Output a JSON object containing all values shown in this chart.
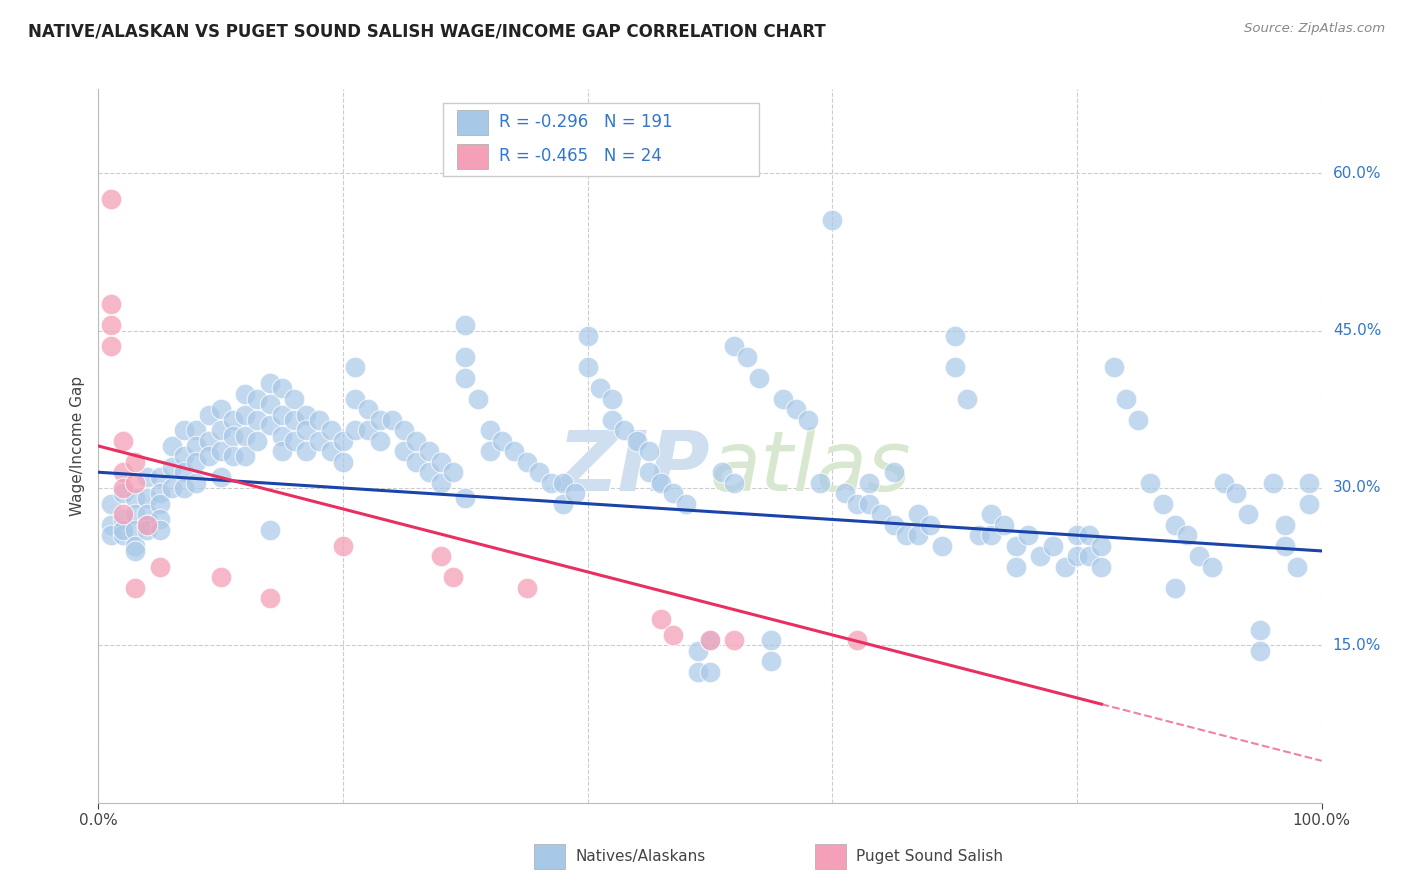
{
  "title": "NATIVE/ALASKAN VS PUGET SOUND SALISH WAGE/INCOME GAP CORRELATION CHART",
  "source": "Source: ZipAtlas.com",
  "ylabel": "Wage/Income Gap",
  "ytick_labels": [
    "60.0%",
    "45.0%",
    "30.0%",
    "15.0%"
  ],
  "ytick_positions": [
    0.6,
    0.45,
    0.3,
    0.15
  ],
  "legend_R1": "-0.296",
  "legend_N1": "191",
  "legend_R2": "-0.465",
  "legend_N2": "24",
  "blue_color": "#a8c8e8",
  "pink_color": "#f4a0b8",
  "blue_line_color": "#1a44aa",
  "pink_line_color": "#e83060",
  "watermark_color": "#d0dff0",
  "title_color": "#222222",
  "axis_label_color": "#444444",
  "tick_color_right": "#3377cc",
  "background_color": "#ffffff",
  "grid_color": "#cccccc",
  "blue_points": [
    [
      0.01,
      0.285
    ],
    [
      0.01,
      0.265
    ],
    [
      0.01,
      0.255
    ],
    [
      0.02,
      0.295
    ],
    [
      0.02,
      0.27
    ],
    [
      0.02,
      0.255
    ],
    [
      0.02,
      0.26
    ],
    [
      0.03,
      0.29
    ],
    [
      0.03,
      0.275
    ],
    [
      0.03,
      0.26
    ],
    [
      0.03,
      0.245
    ],
    [
      0.03,
      0.24
    ],
    [
      0.04,
      0.31
    ],
    [
      0.04,
      0.29
    ],
    [
      0.04,
      0.275
    ],
    [
      0.04,
      0.265
    ],
    [
      0.04,
      0.26
    ],
    [
      0.05,
      0.31
    ],
    [
      0.05,
      0.295
    ],
    [
      0.05,
      0.285
    ],
    [
      0.05,
      0.27
    ],
    [
      0.05,
      0.26
    ],
    [
      0.06,
      0.34
    ],
    [
      0.06,
      0.32
    ],
    [
      0.06,
      0.3
    ],
    [
      0.07,
      0.355
    ],
    [
      0.07,
      0.33
    ],
    [
      0.07,
      0.315
    ],
    [
      0.07,
      0.3
    ],
    [
      0.08,
      0.355
    ],
    [
      0.08,
      0.34
    ],
    [
      0.08,
      0.325
    ],
    [
      0.08,
      0.305
    ],
    [
      0.09,
      0.37
    ],
    [
      0.09,
      0.345
    ],
    [
      0.09,
      0.33
    ],
    [
      0.1,
      0.375
    ],
    [
      0.1,
      0.355
    ],
    [
      0.1,
      0.335
    ],
    [
      0.1,
      0.31
    ],
    [
      0.11,
      0.365
    ],
    [
      0.11,
      0.35
    ],
    [
      0.11,
      0.33
    ],
    [
      0.12,
      0.39
    ],
    [
      0.12,
      0.37
    ],
    [
      0.12,
      0.35
    ],
    [
      0.12,
      0.33
    ],
    [
      0.13,
      0.385
    ],
    [
      0.13,
      0.365
    ],
    [
      0.13,
      0.345
    ],
    [
      0.14,
      0.4
    ],
    [
      0.14,
      0.38
    ],
    [
      0.14,
      0.36
    ],
    [
      0.14,
      0.26
    ],
    [
      0.15,
      0.395
    ],
    [
      0.15,
      0.37
    ],
    [
      0.15,
      0.35
    ],
    [
      0.15,
      0.335
    ],
    [
      0.16,
      0.385
    ],
    [
      0.16,
      0.365
    ],
    [
      0.16,
      0.345
    ],
    [
      0.17,
      0.37
    ],
    [
      0.17,
      0.355
    ],
    [
      0.17,
      0.335
    ],
    [
      0.18,
      0.365
    ],
    [
      0.18,
      0.345
    ],
    [
      0.19,
      0.355
    ],
    [
      0.19,
      0.335
    ],
    [
      0.2,
      0.345
    ],
    [
      0.2,
      0.325
    ],
    [
      0.21,
      0.415
    ],
    [
      0.21,
      0.385
    ],
    [
      0.21,
      0.355
    ],
    [
      0.22,
      0.375
    ],
    [
      0.22,
      0.355
    ],
    [
      0.23,
      0.365
    ],
    [
      0.23,
      0.345
    ],
    [
      0.24,
      0.365
    ],
    [
      0.25,
      0.355
    ],
    [
      0.25,
      0.335
    ],
    [
      0.26,
      0.345
    ],
    [
      0.26,
      0.325
    ],
    [
      0.27,
      0.335
    ],
    [
      0.27,
      0.315
    ],
    [
      0.28,
      0.325
    ],
    [
      0.28,
      0.305
    ],
    [
      0.29,
      0.315
    ],
    [
      0.3,
      0.455
    ],
    [
      0.3,
      0.425
    ],
    [
      0.3,
      0.405
    ],
    [
      0.3,
      0.29
    ],
    [
      0.31,
      0.385
    ],
    [
      0.32,
      0.355
    ],
    [
      0.32,
      0.335
    ],
    [
      0.33,
      0.345
    ],
    [
      0.34,
      0.335
    ],
    [
      0.35,
      0.325
    ],
    [
      0.36,
      0.315
    ],
    [
      0.37,
      0.305
    ],
    [
      0.38,
      0.305
    ],
    [
      0.38,
      0.285
    ],
    [
      0.39,
      0.295
    ],
    [
      0.4,
      0.445
    ],
    [
      0.4,
      0.415
    ],
    [
      0.41,
      0.395
    ],
    [
      0.42,
      0.385
    ],
    [
      0.42,
      0.365
    ],
    [
      0.43,
      0.355
    ],
    [
      0.44,
      0.345
    ],
    [
      0.45,
      0.335
    ],
    [
      0.45,
      0.315
    ],
    [
      0.46,
      0.305
    ],
    [
      0.47,
      0.295
    ],
    [
      0.48,
      0.285
    ],
    [
      0.49,
      0.145
    ],
    [
      0.49,
      0.125
    ],
    [
      0.5,
      0.155
    ],
    [
      0.5,
      0.125
    ],
    [
      0.51,
      0.315
    ],
    [
      0.52,
      0.305
    ],
    [
      0.52,
      0.435
    ],
    [
      0.53,
      0.425
    ],
    [
      0.54,
      0.405
    ],
    [
      0.55,
      0.155
    ],
    [
      0.55,
      0.135
    ],
    [
      0.56,
      0.385
    ],
    [
      0.57,
      0.375
    ],
    [
      0.58,
      0.365
    ],
    [
      0.59,
      0.305
    ],
    [
      0.6,
      0.555
    ],
    [
      0.61,
      0.295
    ],
    [
      0.62,
      0.285
    ],
    [
      0.63,
      0.305
    ],
    [
      0.63,
      0.285
    ],
    [
      0.64,
      0.275
    ],
    [
      0.65,
      0.265
    ],
    [
      0.65,
      0.315
    ],
    [
      0.66,
      0.255
    ],
    [
      0.67,
      0.275
    ],
    [
      0.67,
      0.255
    ],
    [
      0.68,
      0.265
    ],
    [
      0.69,
      0.245
    ],
    [
      0.7,
      0.445
    ],
    [
      0.7,
      0.415
    ],
    [
      0.71,
      0.385
    ],
    [
      0.72,
      0.255
    ],
    [
      0.73,
      0.275
    ],
    [
      0.73,
      0.255
    ],
    [
      0.74,
      0.265
    ],
    [
      0.75,
      0.245
    ],
    [
      0.75,
      0.225
    ],
    [
      0.76,
      0.255
    ],
    [
      0.77,
      0.235
    ],
    [
      0.78,
      0.245
    ],
    [
      0.79,
      0.225
    ],
    [
      0.8,
      0.255
    ],
    [
      0.8,
      0.235
    ],
    [
      0.81,
      0.255
    ],
    [
      0.81,
      0.235
    ],
    [
      0.82,
      0.245
    ],
    [
      0.82,
      0.225
    ],
    [
      0.83,
      0.415
    ],
    [
      0.84,
      0.385
    ],
    [
      0.85,
      0.365
    ],
    [
      0.86,
      0.305
    ],
    [
      0.87,
      0.285
    ],
    [
      0.88,
      0.265
    ],
    [
      0.88,
      0.205
    ],
    [
      0.89,
      0.255
    ],
    [
      0.9,
      0.235
    ],
    [
      0.91,
      0.225
    ],
    [
      0.92,
      0.305
    ],
    [
      0.93,
      0.295
    ],
    [
      0.94,
      0.275
    ],
    [
      0.95,
      0.165
    ],
    [
      0.95,
      0.145
    ],
    [
      0.96,
      0.305
    ],
    [
      0.97,
      0.265
    ],
    [
      0.97,
      0.245
    ],
    [
      0.98,
      0.225
    ],
    [
      0.99,
      0.305
    ],
    [
      0.99,
      0.285
    ]
  ],
  "pink_points": [
    [
      0.01,
      0.575
    ],
    [
      0.01,
      0.475
    ],
    [
      0.01,
      0.455
    ],
    [
      0.01,
      0.435
    ],
    [
      0.02,
      0.345
    ],
    [
      0.02,
      0.315
    ],
    [
      0.02,
      0.3
    ],
    [
      0.02,
      0.275
    ],
    [
      0.03,
      0.325
    ],
    [
      0.03,
      0.305
    ],
    [
      0.03,
      0.205
    ],
    [
      0.04,
      0.265
    ],
    [
      0.05,
      0.225
    ],
    [
      0.1,
      0.215
    ],
    [
      0.14,
      0.195
    ],
    [
      0.2,
      0.245
    ],
    [
      0.28,
      0.235
    ],
    [
      0.29,
      0.215
    ],
    [
      0.35,
      0.205
    ],
    [
      0.46,
      0.175
    ],
    [
      0.47,
      0.16
    ],
    [
      0.5,
      0.155
    ],
    [
      0.52,
      0.155
    ],
    [
      0.62,
      0.155
    ]
  ],
  "blue_line_y_start": 0.315,
  "blue_line_y_end": 0.24,
  "pink_line_y_start": 0.34,
  "pink_line_y_end": 0.04,
  "pink_line_solid_end_x": 0.82,
  "ylim": [
    0.0,
    0.68
  ],
  "xlim": [
    0.0,
    1.0
  ],
  "x_grid_positions": [
    0.0,
    0.2,
    0.4,
    0.6,
    0.8,
    1.0
  ]
}
